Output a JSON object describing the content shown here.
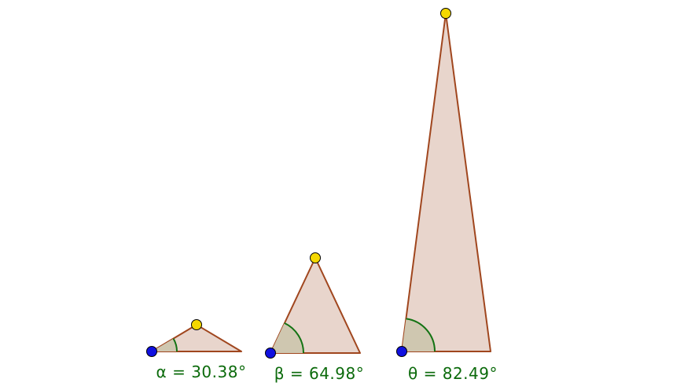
{
  "triangles": [
    {
      "label": "α = 30.38°"
    },
    {
      "label": "β = 64.98°"
    },
    {
      "label": "θ = 82.49°"
    }
  ]
}
